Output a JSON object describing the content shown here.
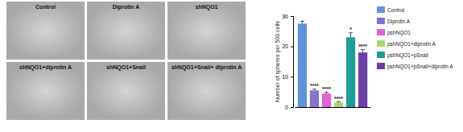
{
  "chart_data": {
    "type": "bar",
    "y_label": "Number of spheres per 500 cells",
    "categories": [
      "Control",
      "Diprotin A",
      "pshNQO1",
      "pshNQO1+diprotin A",
      "pshNQO1+pSnail",
      "pshNQO1+pSnail+diprotin A"
    ],
    "values": [
      27.5,
      5.5,
      4.5,
      1.5,
      23,
      18
    ],
    "errors": [
      0.8,
      0.4,
      0.4,
      0.2,
      1.5,
      1
    ],
    "annotations": [
      null,
      "****",
      "****",
      "****",
      "*",
      "****"
    ],
    "colors": [
      "#5f93d8",
      "#8573cc",
      "#e063d2",
      "#a6d86c",
      "#1f9e98",
      "#6b3fa3"
    ],
    "ylim": [
      0,
      30
    ],
    "yticks": [
      0,
      10,
      20,
      30
    ],
    "tick_labels": "y",
    "legend": "right"
  },
  "image_panels": {
    "labels": [
      "Control",
      "Diprotin A",
      "shNQO1",
      "shNQO1+diprotin A",
      "shNQO1+Snail",
      "shNQO1+Snail+ diprotin A"
    ]
  }
}
